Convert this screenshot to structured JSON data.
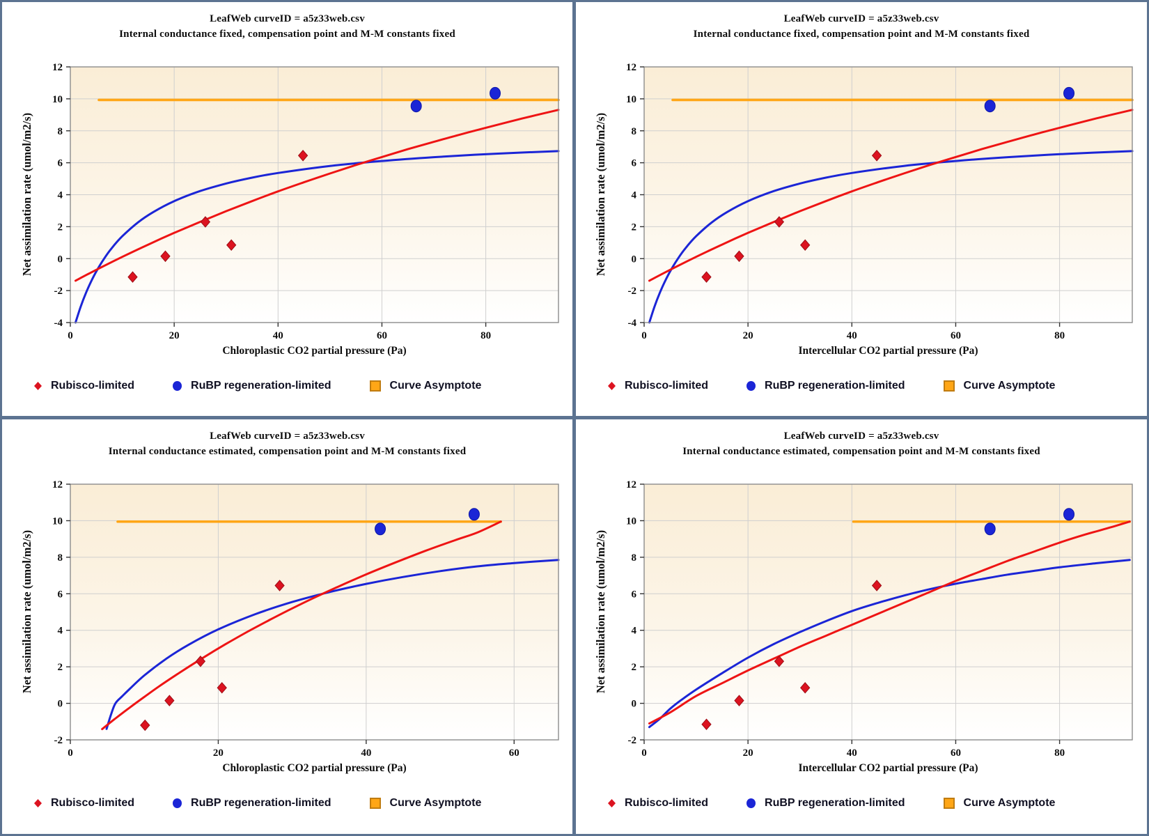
{
  "figure": {
    "border_color": "#5C7391",
    "plot_bg_top": "#FAEDD6",
    "plot_bg_bottom": "#FFFFFF",
    "grid_color": "#CFCFCF",
    "frame_color": "#8C8C8C"
  },
  "legend": {
    "items": [
      {
        "label": "Rubisco-limited",
        "marker": "diamond-marker-icon",
        "color": "#DC1320"
      },
      {
        "label": "RuBP regeneration-limited",
        "marker": "circle-marker-icon",
        "color": "#1B25D6"
      },
      {
        "label": "Curve Asymptote",
        "marker": "square-marker-icon",
        "color": "#FFA616"
      }
    ]
  },
  "chart_data": [
    {
      "position": "top-left",
      "type": "scatter",
      "title": "LeafWeb curveID = a5z33web.csv",
      "subtitle": "Internal conductance fixed, compensation point and M-M constants fixed",
      "xlabel": "Chloroplastic CO2 partial pressure (Pa)",
      "ylabel": "Net assimilation rate (umol/m2/s)",
      "xlim": [
        0,
        94
      ],
      "ylim": [
        -4,
        12
      ],
      "xticks": [
        0,
        20,
        40,
        60,
        80
      ],
      "yticks": [
        -4,
        -2,
        0,
        2,
        4,
        6,
        8,
        10,
        12
      ],
      "grid": true,
      "series": [
        {
          "name": "Curve Asymptote",
          "kind": "line",
          "color": "#FFA616",
          "width": 3.6,
          "points": [
            [
              5.5,
              9.93
            ],
            [
              94,
              9.93
            ]
          ]
        },
        {
          "name": "RuBP regeneration-limited model curve",
          "kind": "line",
          "color": "#1B25D6",
          "width": 3,
          "points": [
            [
              1,
              -4
            ],
            [
              2,
              -3
            ],
            [
              3,
              -2.15
            ],
            [
              4,
              -1.43
            ],
            [
              5,
              -0.8
            ],
            [
              6.5,
              0
            ],
            [
              8,
              0.67
            ],
            [
              10,
              1.4
            ],
            [
              13,
              2.26
            ],
            [
              16,
              2.92
            ],
            [
              20,
              3.6
            ],
            [
              25,
              4.23
            ],
            [
              30,
              4.7
            ],
            [
              35,
              5.07
            ],
            [
              40,
              5.36
            ],
            [
              50,
              5.8
            ],
            [
              60,
              6.11
            ],
            [
              70,
              6.35
            ],
            [
              82,
              6.57
            ],
            [
              94,
              6.73
            ]
          ]
        },
        {
          "name": "Rubisco-limited model curve",
          "kind": "line",
          "color": "#EE1414",
          "width": 3,
          "points": [
            [
              1,
              -1.38
            ],
            [
              5,
              -0.7
            ],
            [
              10,
              0.11
            ],
            [
              15,
              0.88
            ],
            [
              20,
              1.61
            ],
            [
              25,
              2.3
            ],
            [
              30,
              2.97
            ],
            [
              35,
              3.6
            ],
            [
              40,
              4.21
            ],
            [
              45,
              4.78
            ],
            [
              50,
              5.33
            ],
            [
              55,
              5.86
            ],
            [
              60,
              6.36
            ],
            [
              65,
              6.85
            ],
            [
              70,
              7.31
            ],
            [
              75,
              7.76
            ],
            [
              80,
              8.19
            ],
            [
              87,
              8.77
            ],
            [
              94,
              9.31
            ]
          ]
        },
        {
          "name": "Rubisco-limited",
          "kind": "scatter",
          "marker": "diamond",
          "color": "#DC1320",
          "points": [
            [
              12,
              -1.15
            ],
            [
              18.3,
              0.15
            ],
            [
              26,
              2.3
            ],
            [
              31,
              0.85
            ],
            [
              44.8,
              6.45
            ]
          ]
        },
        {
          "name": "RuBP regeneration-limited",
          "kind": "scatter",
          "marker": "circle",
          "color": "#1B25D6",
          "points": [
            [
              66.6,
              9.55
            ],
            [
              81.8,
              10.35
            ]
          ]
        }
      ]
    },
    {
      "position": "top-right",
      "type": "scatter",
      "title": "LeafWeb curveID = a5z33web.csv",
      "subtitle": "Internal conductance fixed, compensation point and M-M constants fixed",
      "xlabel": "Intercellular CO2 partial pressure (Pa)",
      "ylabel": "Net assimilation rate (umol/m2/s)",
      "xlim": [
        0,
        94
      ],
      "ylim": [
        -4,
        12
      ],
      "xticks": [
        0,
        20,
        40,
        60,
        80
      ],
      "yticks": [
        -4,
        -2,
        0,
        2,
        4,
        6,
        8,
        10,
        12
      ],
      "grid": true,
      "series": [
        {
          "name": "Curve Asymptote",
          "kind": "line",
          "color": "#FFA616",
          "width": 3.6,
          "points": [
            [
              5.5,
              9.93
            ],
            [
              94,
              9.93
            ]
          ]
        },
        {
          "name": "RuBP regeneration-limited model curve",
          "kind": "line",
          "color": "#1B25D6",
          "width": 3,
          "points": [
            [
              1,
              -4
            ],
            [
              2,
              -3
            ],
            [
              3,
              -2.15
            ],
            [
              4,
              -1.43
            ],
            [
              5,
              -0.8
            ],
            [
              6.5,
              0
            ],
            [
              8,
              0.67
            ],
            [
              10,
              1.4
            ],
            [
              13,
              2.26
            ],
            [
              16,
              2.92
            ],
            [
              20,
              3.6
            ],
            [
              25,
              4.23
            ],
            [
              30,
              4.7
            ],
            [
              35,
              5.07
            ],
            [
              40,
              5.36
            ],
            [
              50,
              5.8
            ],
            [
              60,
              6.11
            ],
            [
              70,
              6.35
            ],
            [
              82,
              6.57
            ],
            [
              94,
              6.73
            ]
          ]
        },
        {
          "name": "Rubisco-limited model curve",
          "kind": "line",
          "color": "#EE1414",
          "width": 3,
          "points": [
            [
              1,
              -1.38
            ],
            [
              5,
              -0.7
            ],
            [
              10,
              0.11
            ],
            [
              15,
              0.88
            ],
            [
              20,
              1.61
            ],
            [
              25,
              2.3
            ],
            [
              30,
              2.97
            ],
            [
              35,
              3.6
            ],
            [
              40,
              4.21
            ],
            [
              45,
              4.78
            ],
            [
              50,
              5.33
            ],
            [
              55,
              5.86
            ],
            [
              60,
              6.36
            ],
            [
              65,
              6.85
            ],
            [
              70,
              7.31
            ],
            [
              75,
              7.76
            ],
            [
              80,
              8.19
            ],
            [
              87,
              8.77
            ],
            [
              94,
              9.31
            ]
          ]
        },
        {
          "name": "Rubisco-limited",
          "kind": "scatter",
          "marker": "diamond",
          "color": "#DC1320",
          "points": [
            [
              12,
              -1.15
            ],
            [
              18.3,
              0.15
            ],
            [
              26,
              2.3
            ],
            [
              31,
              0.85
            ],
            [
              44.8,
              6.45
            ]
          ]
        },
        {
          "name": "RuBP regeneration-limited",
          "kind": "scatter",
          "marker": "circle",
          "color": "#1B25D6",
          "points": [
            [
              66.6,
              9.55
            ],
            [
              81.8,
              10.35
            ]
          ]
        }
      ]
    },
    {
      "position": "bottom-left",
      "type": "scatter",
      "title": "LeafWeb curveID = a5z33web.csv",
      "subtitle": "Internal conductance estimated, compensation point and M-M constants fixed",
      "xlabel": "Chloroplastic CO2 partial pressure (Pa)",
      "ylabel": "Net assimilation rate (umol/m2/s)",
      "xlim": [
        0,
        66
      ],
      "ylim": [
        -2,
        12
      ],
      "xticks": [
        0,
        20,
        40,
        60
      ],
      "yticks": [
        -2,
        0,
        2,
        4,
        6,
        8,
        10,
        12
      ],
      "grid": true,
      "series": [
        {
          "name": "Curve Asymptote",
          "kind": "line",
          "color": "#FFA616",
          "width": 3.6,
          "points": [
            [
              6.4,
              9.95
            ],
            [
              58.2,
              9.95
            ]
          ]
        },
        {
          "name": "RuBP regeneration-limited model curve",
          "kind": "line",
          "color": "#1B25D6",
          "width": 3,
          "points": [
            [
              4.9,
              -1.4
            ],
            [
              5.5,
              -0.62
            ],
            [
              6.1,
              0
            ],
            [
              7,
              0.38
            ],
            [
              8,
              0.78
            ],
            [
              10,
              1.53
            ],
            [
              13,
              2.45
            ],
            [
              16,
              3.21
            ],
            [
              20,
              4.05
            ],
            [
              25,
              4.88
            ],
            [
              30,
              5.55
            ],
            [
              35,
              6.09
            ],
            [
              40,
              6.54
            ],
            [
              45,
              6.92
            ],
            [
              50,
              7.24
            ],
            [
              55,
              7.5
            ],
            [
              60,
              7.68
            ],
            [
              66,
              7.85
            ]
          ]
        },
        {
          "name": "Rubisco-limited model curve",
          "kind": "line",
          "color": "#EE1414",
          "width": 3,
          "points": [
            [
              4.3,
              -1.41
            ],
            [
              6,
              -0.86
            ],
            [
              8,
              -0.24
            ],
            [
              10,
              0.35
            ],
            [
              12,
              0.93
            ],
            [
              15,
              1.74
            ],
            [
              18,
              2.51
            ],
            [
              21,
              3.24
            ],
            [
              24,
              3.93
            ],
            [
              27,
              4.58
            ],
            [
              30,
              5.2
            ],
            [
              33,
              5.79
            ],
            [
              36,
              6.35
            ],
            [
              40,
              7.06
            ],
            [
              44,
              7.72
            ],
            [
              48,
              8.35
            ],
            [
              52,
              8.93
            ],
            [
              55,
              9.35
            ],
            [
              58.2,
              9.95
            ]
          ]
        },
        {
          "name": "Rubisco-limited",
          "kind": "scatter",
          "marker": "diamond",
          "color": "#DC1320",
          "points": [
            [
              10.1,
              -1.2
            ],
            [
              13.4,
              0.15
            ],
            [
              17.6,
              2.3
            ],
            [
              20.5,
              0.85
            ],
            [
              28.3,
              6.45
            ]
          ]
        },
        {
          "name": "RuBP regeneration-limited",
          "kind": "scatter",
          "marker": "circle",
          "color": "#1B25D6",
          "points": [
            [
              41.9,
              9.55
            ],
            [
              54.6,
              10.35
            ]
          ]
        }
      ]
    },
    {
      "position": "bottom-right",
      "type": "scatter",
      "title": "LeafWeb curveID = a5z33web.csv",
      "subtitle": "Internal conductance estimated, compensation point and M-M constants fixed",
      "xlabel": "Intercellular CO2 partial pressure (Pa)",
      "ylabel": "Net assimilation rate (umol/m2/s)",
      "xlim": [
        0,
        94
      ],
      "ylim": [
        -2,
        12
      ],
      "xticks": [
        0,
        20,
        40,
        60,
        80
      ],
      "yticks": [
        -2,
        0,
        2,
        4,
        6,
        8,
        10,
        12
      ],
      "grid": true,
      "series": [
        {
          "name": "Curve Asymptote",
          "kind": "line",
          "color": "#FFA616",
          "width": 3.6,
          "points": [
            [
              40.3,
              9.95
            ],
            [
              93.5,
              9.95
            ]
          ]
        },
        {
          "name": "RuBP regeneration-limited model curve",
          "kind": "line",
          "color": "#1B25D6",
          "width": 3,
          "points": [
            [
              1,
              -1.3
            ],
            [
              3,
              -0.85
            ],
            [
              5,
              -0.3
            ],
            [
              7,
              0.15
            ],
            [
              10,
              0.75
            ],
            [
              15,
              1.65
            ],
            [
              20,
              2.5
            ],
            [
              25,
              3.25
            ],
            [
              30,
              3.9
            ],
            [
              35,
              4.5
            ],
            [
              40,
              5.05
            ],
            [
              45,
              5.5
            ],
            [
              50,
              5.9
            ],
            [
              55,
              6.25
            ],
            [
              60,
              6.55
            ],
            [
              65,
              6.8
            ],
            [
              70,
              7.05
            ],
            [
              75,
              7.25
            ],
            [
              80,
              7.45
            ],
            [
              87,
              7.67
            ],
            [
              93.5,
              7.85
            ]
          ]
        },
        {
          "name": "Rubisco-limited model curve",
          "kind": "line",
          "color": "#EE1414",
          "width": 3,
          "points": [
            [
              1,
              -1.1
            ],
            [
              5,
              -0.5
            ],
            [
              10,
              0.4
            ],
            [
              15,
              1.1
            ],
            [
              20,
              1.8
            ],
            [
              25,
              2.45
            ],
            [
              30,
              3.1
            ],
            [
              35,
              3.7
            ],
            [
              40,
              4.3
            ],
            [
              45,
              4.9
            ],
            [
              50,
              5.5
            ],
            [
              55,
              6.1
            ],
            [
              60,
              6.7
            ],
            [
              65,
              7.25
            ],
            [
              70,
              7.8
            ],
            [
              75,
              8.3
            ],
            [
              80,
              8.8
            ],
            [
              85,
              9.25
            ],
            [
              90,
              9.65
            ],
            [
              93.5,
              9.95
            ]
          ]
        },
        {
          "name": "Rubisco-limited",
          "kind": "scatter",
          "marker": "diamond",
          "color": "#DC1320",
          "points": [
            [
              12,
              -1.15
            ],
            [
              18.3,
              0.15
            ],
            [
              26,
              2.3
            ],
            [
              31,
              0.85
            ],
            [
              44.8,
              6.45
            ]
          ]
        },
        {
          "name": "RuBP regeneration-limited",
          "kind": "scatter",
          "marker": "circle",
          "color": "#1B25D6",
          "points": [
            [
              66.6,
              9.55
            ],
            [
              81.8,
              10.35
            ]
          ]
        }
      ]
    }
  ]
}
